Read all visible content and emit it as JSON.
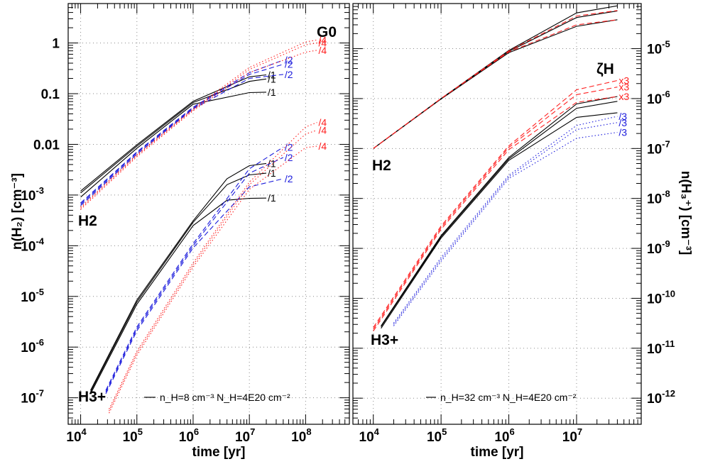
{
  "colors": {
    "black": "#000000",
    "red": "#ff2020",
    "blue": "#1a1adc"
  },
  "panels": [
    {
      "xlabel": "time [yr]",
      "ylabel": "n(H₂) [cm⁻³]",
      "legend_text": "n_H=8 cm⁻³ N_H=4E20 cm⁻²",
      "param_header": "G0",
      "species_labels": [
        "H2",
        "H3+"
      ]
    },
    {
      "xlabel": "time [yr]",
      "ylabel": "n(H₃⁺) [cm⁻³]",
      "legend_text": "n_H=32 cm⁻³ N_H=4E20 cm⁻²",
      "param_header": "ζH",
      "species_labels": [
        "H2",
        "H3+"
      ]
    }
  ],
  "chart_data": [
    {
      "type": "line",
      "xscale": "log",
      "yscale": "log",
      "xlim": [
        6000,
        600000000
      ],
      "ylim": [
        3e-08,
        6
      ],
      "xticks": [
        10000,
        100000,
        1000000,
        10000000,
        100000000
      ],
      "xticklabels": [
        "10^4",
        "10^5",
        "10^6",
        "10^7",
        "10^8"
      ],
      "yticks": [
        1e-07,
        1e-06,
        1e-05,
        0.0001,
        0.001,
        0.01,
        0.1,
        1
      ],
      "yticklabels": [
        "10^-7",
        "10^-6",
        "10^-5",
        "10^-4",
        "10^-3",
        "0.01",
        "0.1",
        "1"
      ],
      "grid": true,
      "series": [
        {
          "species": "H2",
          "color": "black",
          "dash": "solid",
          "label": "/1",
          "x": [
            10000,
            100000,
            1000000,
            10000000,
            20000000
          ],
          "y": [
            0.00091,
            0.0084,
            0.062,
            0.105,
            0.107
          ]
        },
        {
          "species": "H2",
          "color": "black",
          "dash": "solid",
          "label": "/1",
          "x": [
            10000,
            100000,
            1000000,
            10000000,
            20000000
          ],
          "y": [
            0.0011,
            0.0092,
            0.067,
            0.175,
            0.195
          ]
        },
        {
          "species": "H2",
          "color": "black",
          "dash": "solid",
          "label": "/1",
          "x": [
            10000,
            100000,
            1000000,
            10000000,
            20000000
          ],
          "y": [
            0.0012,
            0.0098,
            0.071,
            0.215,
            0.235
          ]
        },
        {
          "species": "H2",
          "color": "blue",
          "dash": "dashed",
          "label": "/2",
          "x": [
            10000,
            100000,
            1000000,
            10000000,
            40000000
          ],
          "y": [
            0.00062,
            0.0064,
            0.05,
            0.2,
            0.24
          ]
        },
        {
          "species": "H2",
          "color": "blue",
          "dash": "dashed",
          "label": "/2",
          "x": [
            10000,
            100000,
            1000000,
            10000000,
            40000000
          ],
          "y": [
            0.00066,
            0.0068,
            0.052,
            0.24,
            0.38
          ]
        },
        {
          "species": "H2",
          "color": "blue",
          "dash": "dashed",
          "label": "/2",
          "x": [
            10000,
            100000,
            1000000,
            10000000,
            40000000
          ],
          "y": [
            0.0007,
            0.0071,
            0.054,
            0.26,
            0.46
          ]
        },
        {
          "species": "H2",
          "color": "red",
          "dash": "dotted",
          "label": "/4",
          "x": [
            10000,
            100000,
            1000000,
            10000000,
            100000000,
            160000000
          ],
          "y": [
            0.00052,
            0.0057,
            0.046,
            0.26,
            0.66,
            0.72
          ]
        },
        {
          "species": "H2",
          "color": "red",
          "dash": "dotted",
          "label": "/4",
          "x": [
            10000,
            100000,
            1000000,
            10000000,
            100000000,
            160000000
          ],
          "y": [
            0.00055,
            0.006,
            0.048,
            0.3,
            0.92,
            1.0
          ]
        },
        {
          "species": "H2",
          "color": "red",
          "dash": "dotted",
          "label": "/4",
          "x": [
            10000,
            100000,
            1000000,
            10000000,
            100000000,
            160000000
          ],
          "y": [
            0.00058,
            0.0063,
            0.05,
            0.33,
            1.05,
            1.15
          ]
        },
        {
          "species": "H3+",
          "color": "black",
          "dash": "solid",
          "label": "/1",
          "x": [
            15000,
            100000,
            1000000,
            4000000,
            10000000,
            20000000
          ],
          "y": [
            1.2e-07,
            7e-06,
            0.00025,
            0.00079,
            0.00086,
            0.00087
          ]
        },
        {
          "species": "H3+",
          "color": "black",
          "dash": "solid",
          "label": "/1",
          "x": [
            15000,
            100000,
            1000000,
            4000000,
            10000000,
            20000000
          ],
          "y": [
            1.3e-07,
            7.8e-06,
            0.00029,
            0.0016,
            0.0025,
            0.0027
          ]
        },
        {
          "species": "H3+",
          "color": "black",
          "dash": "solid",
          "label": "/1",
          "x": [
            15000,
            100000,
            1000000,
            4000000,
            10000000,
            20000000
          ],
          "y": [
            1.4e-07,
            8.5e-06,
            0.00031,
            0.0021,
            0.0038,
            0.0042
          ]
        },
        {
          "species": "H3+",
          "color": "blue",
          "dash": "dashed",
          "label": "/2",
          "x": [
            28000,
            100000,
            1000000,
            10000000,
            40000000
          ],
          "y": [
            1.2e-07,
            2.1e-06,
            9.1e-05,
            0.00145,
            0.0021
          ]
        },
        {
          "species": "H3+",
          "color": "blue",
          "dash": "dashed",
          "label": "/2",
          "x": [
            28000,
            100000,
            1000000,
            10000000,
            40000000
          ],
          "y": [
            1.3e-07,
            2.3e-06,
            0.0001,
            0.0027,
            0.0055
          ]
        },
        {
          "species": "H3+",
          "color": "blue",
          "dash": "dashed",
          "label": "/2",
          "x": [
            28000,
            100000,
            1000000,
            10000000,
            40000000
          ],
          "y": [
            1.4e-07,
            2.5e-06,
            0.00011,
            0.0033,
            0.0088
          ]
        },
        {
          "species": "H3+",
          "color": "red",
          "dash": "dotted",
          "label": "/4",
          "x": [
            32000,
            100000,
            1000000,
            10000000,
            100000000,
            160000000
          ],
          "y": [
            5e-08,
            6.9e-07,
            3.8e-05,
            0.0013,
            0.0086,
            0.0092
          ]
        },
        {
          "species": "H3+",
          "color": "red",
          "dash": "dotted",
          "label": "/4",
          "x": [
            32000,
            100000,
            1000000,
            10000000,
            100000000,
            160000000
          ],
          "y": [
            5.5e-08,
            7.6e-07,
            4.2e-05,
            0.0016,
            0.016,
            0.019
          ]
        },
        {
          "species": "H3+",
          "color": "red",
          "dash": "dotted",
          "label": "/4",
          "x": [
            32000,
            100000,
            1000000,
            10000000,
            100000000,
            160000000
          ],
          "y": [
            6e-08,
            8.3e-07,
            4.6e-05,
            0.0018,
            0.022,
            0.027
          ]
        }
      ]
    },
    {
      "type": "line",
      "xscale": "log",
      "yscale": "log",
      "xlim": [
        5000,
        90000000
      ],
      "ylim": [
        3e-13,
        8e-05
      ],
      "xticks": [
        10000,
        100000,
        1000000,
        10000000
      ],
      "xticklabels": [
        "10^4",
        "10^5",
        "10^6",
        "10^7"
      ],
      "yticks": [
        1e-12,
        1e-11,
        1e-10,
        1e-09,
        1e-08,
        1e-07,
        1e-06,
        1e-05
      ],
      "yticklabels": [
        "10^-12",
        "10^-11",
        "10^-10",
        "10^-9",
        "10^-8",
        "10^-7",
        "10^-6",
        "10^-5"
      ],
      "grid": true,
      "series": [
        {
          "species": "H2",
          "color": "black",
          "dash": "solid",
          "x": [
            10000,
            100000,
            1000000,
            10000000,
            40000000
          ],
          "y": [
            1e-07,
            9.8e-07,
            8.3e-06,
            2.8e-05,
            3.8e-05
          ]
        },
        {
          "species": "H2",
          "color": "black",
          "dash": "solid",
          "x": [
            10000,
            100000,
            1000000,
            10000000,
            40000000
          ],
          "y": [
            1e-07,
            1e-06,
            8.8e-06,
            4.2e-05,
            5.7e-05
          ]
        },
        {
          "species": "H2",
          "color": "black",
          "dash": "solid",
          "x": [
            10000,
            100000,
            1000000,
            10000000,
            40000000
          ],
          "y": [
            1e-07,
            1e-06,
            9.2e-06,
            5.2e-05,
            7.2e-05
          ]
        },
        {
          "species": "H2",
          "color": "red",
          "dash": "dashed",
          "x": [
            10000,
            100000,
            1000000,
            10000000,
            40000000
          ],
          "y": [
            1e-07,
            1e-06,
            8.6e-06,
            3e-05,
            3.8e-05
          ]
        },
        {
          "species": "H2",
          "color": "red",
          "dash": "dashed",
          "x": [
            10000,
            100000,
            1000000,
            10000000,
            40000000
          ],
          "y": [
            1e-07,
            1e-06,
            9e-06,
            4.5e-05,
            5.8e-05
          ]
        },
        {
          "species": "H3+",
          "color": "black",
          "dash": "solid",
          "x": [
            13000,
            100000,
            1000000,
            10000000,
            40000000
          ],
          "y": [
            2.5e-11,
            1.6e-09,
            5.8e-08,
            4.2e-07,
            5.2e-07
          ]
        },
        {
          "species": "H3+",
          "color": "black",
          "dash": "solid",
          "x": [
            13000,
            100000,
            1000000,
            10000000,
            40000000
          ],
          "y": [
            2.7e-11,
            1.7e-09,
            6.2e-08,
            6.4e-07,
            8.8e-07
          ]
        },
        {
          "species": "H3+",
          "color": "black",
          "dash": "solid",
          "x": [
            13000,
            100000,
            1000000,
            10000000,
            40000000
          ],
          "y": [
            2.8e-11,
            1.8e-09,
            6.6e-08,
            7.8e-07,
            1.1e-06
          ]
        },
        {
          "species": "H3+",
          "color": "red",
          "dash": "dashed",
          "label": "x3",
          "x": [
            10000,
            100000,
            1000000,
            10000000,
            40000000
          ],
          "y": [
            2.2e-11,
            2.4e-09,
            9.5e-08,
            8.4e-07,
            1.1e-06
          ]
        },
        {
          "species": "H3+",
          "color": "red",
          "dash": "dashed",
          "label": "x3",
          "x": [
            10000,
            100000,
            1000000,
            10000000,
            40000000
          ],
          "y": [
            2.4e-11,
            2.6e-09,
            1.05e-07,
            1.2e-06,
            1.7e-06
          ]
        },
        {
          "species": "H3+",
          "color": "red",
          "dash": "dashed",
          "label": "x3",
          "x": [
            10000,
            100000,
            1000000,
            10000000,
            40000000
          ],
          "y": [
            2.6e-11,
            2.8e-09,
            1.13e-07,
            1.5e-06,
            2.3e-06
          ]
        },
        {
          "species": "H3+",
          "color": "blue",
          "dash": "dotted",
          "label": "/3",
          "x": [
            20000,
            100000,
            1000000,
            10000000,
            40000000
          ],
          "y": [
            2.8e-11,
            5.5e-10,
            2.5e-08,
            1.6e-07,
            2.1e-07
          ]
        },
        {
          "species": "H3+",
          "color": "blue",
          "dash": "dotted",
          "label": "/3",
          "x": [
            20000,
            100000,
            1000000,
            10000000,
            40000000
          ],
          "y": [
            3e-11,
            6e-10,
            2.7e-08,
            2.4e-07,
            3.3e-07
          ]
        },
        {
          "species": "H3+",
          "color": "blue",
          "dash": "dotted",
          "label": "/3",
          "x": [
            20000,
            100000,
            1000000,
            10000000,
            40000000
          ],
          "y": [
            3.2e-11,
            6.5e-10,
            2.9e-08,
            2.9e-07,
            4.4e-07
          ]
        }
      ]
    }
  ]
}
